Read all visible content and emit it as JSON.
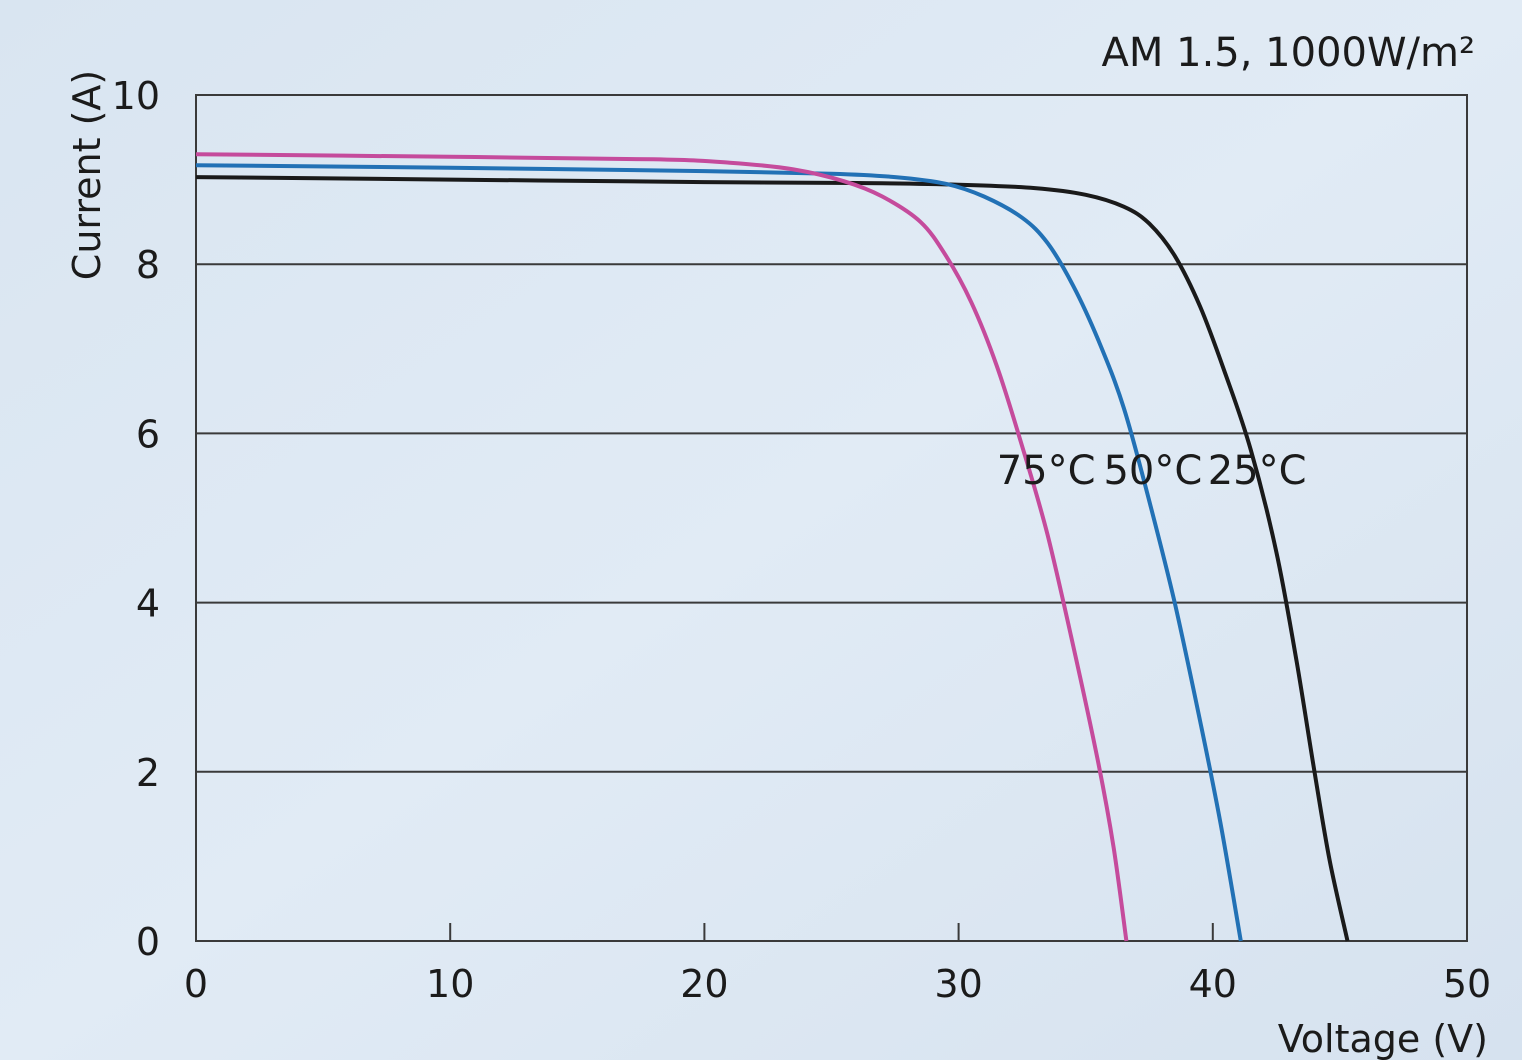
{
  "chart_data": {
    "type": "line",
    "title": "",
    "subtitle": "AM 1.5, 1000W/m²",
    "xlabel": "Voltage (V)",
    "ylabel": "Current (A)",
    "xlim": [
      0,
      50
    ],
    "ylim": [
      0,
      10
    ],
    "xticks": [
      0,
      10,
      20,
      30,
      40,
      50
    ],
    "yticks": [
      0,
      2,
      4,
      6,
      8,
      10
    ],
    "grid": "horizontal",
    "legend": "none",
    "series": [
      {
        "name": "25°C",
        "color": "#1a1a1a",
        "points": [
          [
            0,
            9.03
          ],
          [
            10,
            9.0
          ],
          [
            20,
            8.97
          ],
          [
            26,
            8.96
          ],
          [
            30,
            8.94
          ],
          [
            33,
            8.9
          ],
          [
            35,
            8.82
          ],
          [
            36.5,
            8.68
          ],
          [
            37.5,
            8.48
          ],
          [
            38.5,
            8.1
          ],
          [
            39.5,
            7.5
          ],
          [
            40.5,
            6.7
          ],
          [
            41.5,
            5.8
          ],
          [
            42.5,
            4.6
          ],
          [
            43.3,
            3.3
          ],
          [
            44,
            2.0
          ],
          [
            44.6,
            0.95
          ],
          [
            45.3,
            0
          ]
        ]
      },
      {
        "name": "50°C",
        "color": "#2271b5",
        "points": [
          [
            0,
            9.17
          ],
          [
            10,
            9.14
          ],
          [
            20,
            9.1
          ],
          [
            25,
            9.07
          ],
          [
            27.5,
            9.03
          ],
          [
            29.5,
            8.95
          ],
          [
            31,
            8.8
          ],
          [
            32.5,
            8.55
          ],
          [
            33.5,
            8.25
          ],
          [
            34.5,
            7.75
          ],
          [
            35.5,
            7.1
          ],
          [
            36.5,
            6.3
          ],
          [
            37.5,
            5.2
          ],
          [
            38.5,
            4.0
          ],
          [
            39.5,
            2.6
          ],
          [
            40.3,
            1.4
          ],
          [
            41.1,
            0
          ]
        ]
      },
      {
        "name": "75°C",
        "color": "#c54b9c",
        "points": [
          [
            0,
            9.3
          ],
          [
            10,
            9.27
          ],
          [
            18,
            9.24
          ],
          [
            21,
            9.2
          ],
          [
            23.5,
            9.12
          ],
          [
            25.5,
            8.98
          ],
          [
            27,
            8.8
          ],
          [
            28.5,
            8.5
          ],
          [
            29.5,
            8.1
          ],
          [
            30.5,
            7.55
          ],
          [
            31.5,
            6.8
          ],
          [
            32.5,
            5.85
          ],
          [
            33.5,
            4.8
          ],
          [
            34.5,
            3.5
          ],
          [
            35.5,
            2.1
          ],
          [
            36.1,
            1.1
          ],
          [
            36.6,
            0
          ]
        ]
      }
    ],
    "annotations": [
      {
        "text": "75°C",
        "x": 31.5,
        "y": 5.4
      },
      {
        "text": "50°C",
        "x": 35.7,
        "y": 5.4
      },
      {
        "text": "25°C",
        "x": 39.8,
        "y": 5.4
      }
    ]
  }
}
